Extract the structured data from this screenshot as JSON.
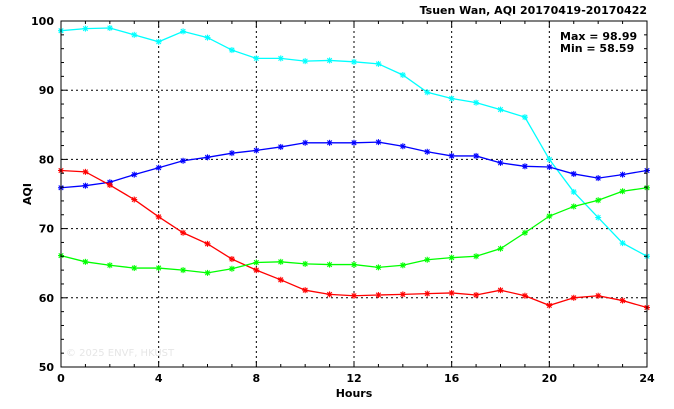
{
  "chart_data": {
    "type": "line",
    "title": "Tsuen Wan, AQI 20170419-20170422",
    "xlabel": "Hours",
    "ylabel": "AQI",
    "xlim": [
      0,
      24
    ],
    "ylim": [
      50,
      100
    ],
    "xticks": [
      0,
      4,
      8,
      12,
      16,
      20,
      24
    ],
    "yticks": [
      50,
      60,
      70,
      80,
      90,
      100
    ],
    "grid": true,
    "marker": "asterisk",
    "stats": {
      "max_label": "Max = 98.99",
      "min_label": "Min = 58.59"
    },
    "watermark": "© 2025  ENVF, HKUST",
    "x": [
      0,
      1,
      2,
      3,
      4,
      5,
      6,
      7,
      8,
      9,
      10,
      11,
      12,
      13,
      14,
      15,
      16,
      17,
      18,
      19,
      20,
      21,
      22,
      23,
      24
    ],
    "series": [
      {
        "color": "#00ffff",
        "values": [
          98.6,
          98.9,
          98.99,
          98.0,
          97.0,
          98.5,
          97.6,
          95.8,
          94.6,
          94.6,
          94.2,
          94.3,
          94.1,
          93.8,
          92.2,
          89.7,
          88.8,
          88.2,
          87.2,
          86.1,
          80.0,
          75.3,
          71.6,
          67.9,
          66.0
        ]
      },
      {
        "color": "#0000ff",
        "values": [
          75.9,
          76.2,
          76.7,
          77.8,
          78.8,
          79.8,
          80.3,
          80.9,
          81.3,
          81.8,
          82.4,
          82.4,
          82.4,
          82.5,
          81.9,
          81.1,
          80.5,
          80.5,
          79.5,
          79.0,
          78.9,
          77.9,
          77.3,
          77.8,
          78.4
        ]
      },
      {
        "color": "#ff0000",
        "values": [
          78.4,
          78.2,
          76.3,
          74.2,
          71.7,
          69.4,
          67.8,
          65.6,
          64.0,
          62.6,
          61.1,
          60.5,
          60.3,
          60.4,
          60.5,
          60.6,
          60.7,
          60.4,
          61.1,
          60.3,
          58.9,
          60.0,
          60.3,
          59.6,
          58.59
        ]
      },
      {
        "color": "#00ff00",
        "values": [
          66.1,
          65.2,
          64.7,
          64.3,
          64.3,
          64.0,
          63.6,
          64.2,
          65.1,
          65.2,
          64.9,
          64.8,
          64.8,
          64.4,
          64.7,
          65.5,
          65.8,
          66.0,
          67.1,
          69.4,
          71.8,
          73.2,
          74.1,
          75.4,
          75.9
        ]
      }
    ]
  }
}
